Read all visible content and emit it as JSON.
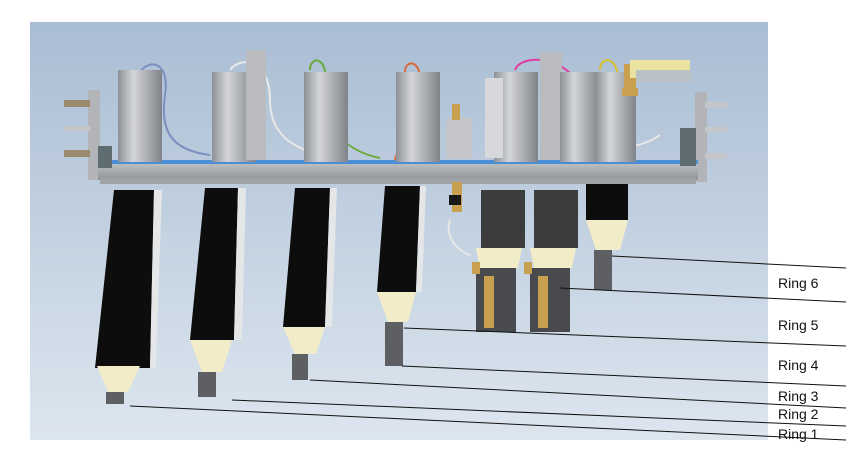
{
  "labels": {
    "ring1": "Ring 1",
    "ring2": "Ring 2",
    "ring3": "Ring 3",
    "ring4": "Ring 4",
    "ring5": "Ring 5",
    "ring6": "Ring 6"
  },
  "colors": {
    "background_top": "#a9bdd3",
    "background_bottom": "#dde6ef",
    "frame": "#b5b7ba",
    "frame_dark": "#7c7f84",
    "rail_blue": "#4a8fd6",
    "cylinder": "#a9acb0",
    "nozzle_black": "#0d0d0d",
    "nozzle_dark_gray": "#3c3c3c",
    "cone_cream": "#f3ecc8",
    "tip_gray": "#5d5f62",
    "leader_line": "#111111"
  },
  "icons": [
    "cylinder",
    "hose",
    "valve",
    "nozzle",
    "leader-line"
  ]
}
